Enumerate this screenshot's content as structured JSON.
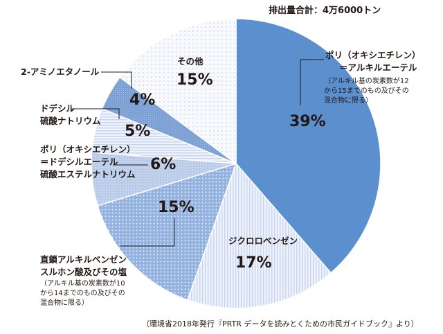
{
  "header": {
    "total_label": "排出量合計：4万6000トン"
  },
  "footer": {
    "source": "（環境省2018年発行『PRTR データを読みとくための市民ガイドブック』より）"
  },
  "labels": {
    "aes_line1": "ポリ（オキシエチレン）",
    "aes_line2": "＝アルキルエーテル",
    "aes_note": "（アルキル基の炭素数が12から15までのもの及びその混合物に限る）",
    "dcb": "ジクロロベンゼン",
    "las_line1": "直鎖アルキルベンゼン",
    "las_line2": "スルホン酸及びその塩",
    "las_note": "（アルキル基の炭素数が10から14までのもの及びその混合物に限る）",
    "pes_line1": "ポリ（オキシエチレン）",
    "pes_line2": "＝ドデシルエーテル",
    "pes_line3": "硫酸エステルナトリウム",
    "sds_line1": "ドデシル",
    "sds_line2": "硫酸ナトリウム",
    "mea": "2-アミノエタノール",
    "other": "その他"
  },
  "percent_labels": {
    "aes": "39%",
    "dcb": "17%",
    "las": "15%",
    "pes": "6%",
    "sds": "5%",
    "mea": "4%",
    "other": "15%"
  },
  "chart_data": {
    "type": "pie",
    "title": "排出量合計：4万6000トン",
    "unit": "%",
    "start": "12 o'clock, clockwise",
    "slices": [
      {
        "key": "aes",
        "name": "ポリ（オキシエチレン）＝アルキルエーテル",
        "value": 39,
        "color": "#5b8fce"
      },
      {
        "key": "dcb",
        "name": "ジクロロベンゼン",
        "value": 17,
        "color": "#e6ecf7"
      },
      {
        "key": "las",
        "name": "直鎖アルキルベンゼンスルホン酸及びその塩",
        "value": 15,
        "color": "#8fb0de"
      },
      {
        "key": "pes",
        "name": "ポリ（オキシエチレン）＝ドデシルエーテル硫酸エステルナトリウム",
        "value": 6,
        "color": "#b9cdea"
      },
      {
        "key": "sds",
        "name": "ドデシル硫酸ナトリウム",
        "value": 5,
        "color": "#dde6f4"
      },
      {
        "key": "mea",
        "name": "2-アミノエタノール",
        "value": 4,
        "color": "#7ea2d6"
      },
      {
        "key": "other",
        "name": "その他",
        "value": 15,
        "color": "#eef2f9"
      }
    ]
  }
}
